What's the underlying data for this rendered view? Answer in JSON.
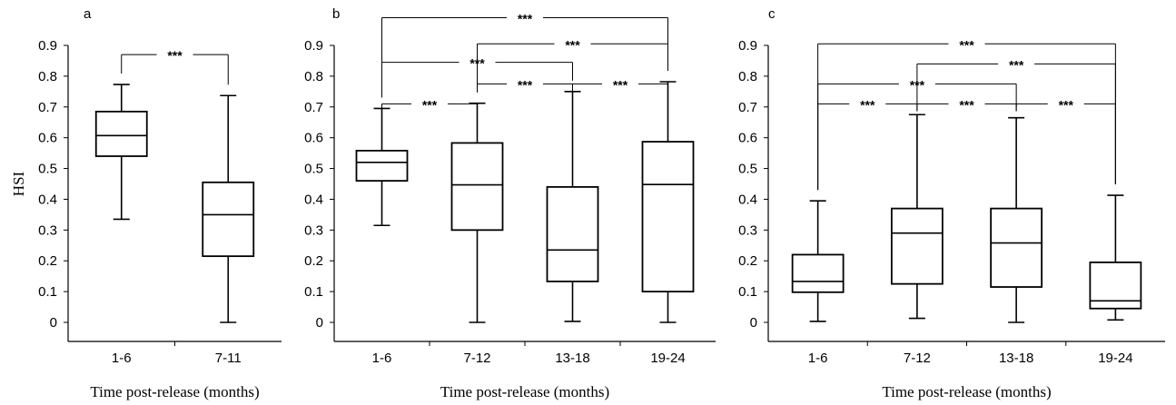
{
  "chart_data": [
    {
      "type": "boxplot",
      "panel_label": "a",
      "ylabel": "HSI",
      "xlabel": "Time post-release (months)",
      "ylim": [
        0,
        0.9
      ],
      "yticks": [
        "0",
        "0.1",
        "0.2",
        "0.3",
        "0.4",
        "0.5",
        "0.6",
        "0.7",
        "0.8",
        "0.9"
      ],
      "categories": [
        "1-6",
        "7-11"
      ],
      "boxes": [
        {
          "min": 0.335,
          "q1": 0.54,
          "median": 0.607,
          "q3": 0.685,
          "max": 0.773
        },
        {
          "min": 0.0,
          "q1": 0.215,
          "median": 0.35,
          "q3": 0.455,
          "max": 0.737
        }
      ],
      "significance": [
        {
          "from": 0,
          "to": 1,
          "label": "***",
          "level": 0.87
        }
      ]
    },
    {
      "type": "boxplot",
      "panel_label": "b",
      "ylabel": "",
      "xlabel": "Time post-release (months)",
      "ylim": [
        0,
        0.9
      ],
      "yticks": [
        "0",
        "0.1",
        "0.2",
        "0.3",
        "0.4",
        "0.5",
        "0.6",
        "0.7",
        "0.8",
        "0.9"
      ],
      "categories": [
        "1-6",
        "7-12",
        "13-18",
        "19-24"
      ],
      "boxes": [
        {
          "min": 0.315,
          "q1": 0.46,
          "median": 0.52,
          "q3": 0.558,
          "max": 0.695
        },
        {
          "min": 0.0,
          "q1": 0.3,
          "median": 0.447,
          "q3": 0.583,
          "max": 0.712
        },
        {
          "min": 0.003,
          "q1": 0.133,
          "median": 0.235,
          "q3": 0.44,
          "max": 0.75
        },
        {
          "min": 0.0,
          "q1": 0.1,
          "median": 0.448,
          "q3": 0.587,
          "max": 0.782
        }
      ],
      "significance": [
        {
          "from": 0,
          "to": 3,
          "label": "***",
          "level": 0.99
        },
        {
          "from": 1,
          "to": 3,
          "label": "***",
          "level": 0.905
        },
        {
          "from": 0,
          "to": 2,
          "label": "***",
          "level": 0.845
        },
        {
          "from": 1,
          "to": 2,
          "label": "***",
          "level": 0.775
        },
        {
          "from": 2,
          "to": 3,
          "label": "***",
          "level": 0.775
        },
        {
          "from": 0,
          "to": 1,
          "label": "***",
          "level": 0.71
        }
      ]
    },
    {
      "type": "boxplot",
      "panel_label": "c",
      "ylabel": "",
      "xlabel": "Time post-release (months)",
      "ylim": [
        0,
        0.9
      ],
      "yticks": [
        "0",
        "0.1",
        "0.2",
        "0.3",
        "0.4",
        "0.5",
        "0.6",
        "0.7",
        "0.8",
        "0.9"
      ],
      "categories": [
        "1-6",
        "7-12",
        "13-18",
        "19-24"
      ],
      "boxes": [
        {
          "min": 0.003,
          "q1": 0.098,
          "median": 0.133,
          "q3": 0.22,
          "max": 0.395
        },
        {
          "min": 0.013,
          "q1": 0.125,
          "median": 0.29,
          "q3": 0.37,
          "max": 0.675
        },
        {
          "min": 0.0,
          "q1": 0.115,
          "median": 0.258,
          "q3": 0.37,
          "max": 0.665
        },
        {
          "min": 0.008,
          "q1": 0.045,
          "median": 0.07,
          "q3": 0.195,
          "max": 0.413
        }
      ],
      "significance": [
        {
          "from": 0,
          "to": 3,
          "label": "***",
          "level": 0.905
        },
        {
          "from": 1,
          "to": 3,
          "label": "***",
          "level": 0.84
        },
        {
          "from": 0,
          "to": 2,
          "label": "***",
          "level": 0.775
        },
        {
          "from": 0,
          "to": 1,
          "label": "***",
          "level": 0.71
        },
        {
          "from": 1,
          "to": 2,
          "label": "***",
          "level": 0.71
        },
        {
          "from": 2,
          "to": 3,
          "label": "***",
          "level": 0.71
        }
      ]
    }
  ]
}
